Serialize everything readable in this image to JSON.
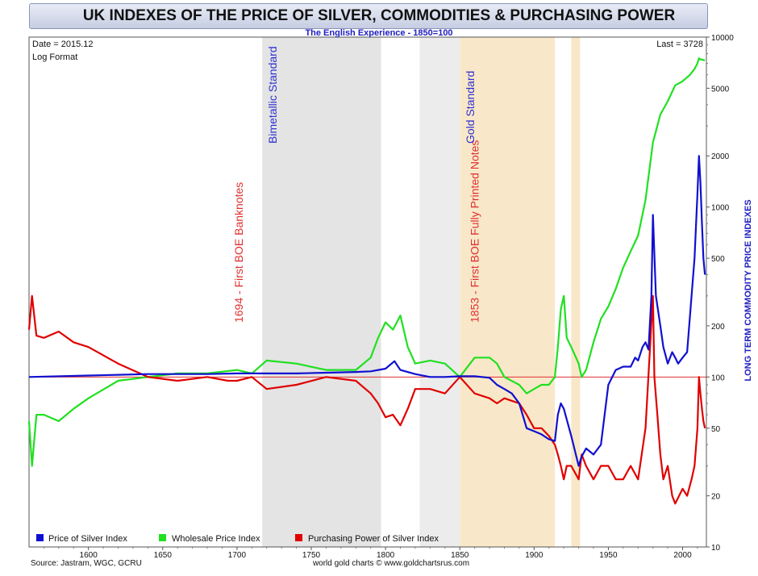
{
  "chart_data": {
    "type": "line",
    "title": "UK INDEXES OF THE PRICE OF SILVER, COMMODITIES & PURCHASING POWER",
    "subtitle": "The English Experience - 1850=100",
    "date_label": "Date = 2015.12",
    "format_label": "Log Format",
    "last_label": "Last = 3728",
    "ylabel": "LONG TERM COMMODITY PRICE INDEXES",
    "yscale": "log",
    "ylim": [
      10,
      10000
    ],
    "xlim": [
      1560,
      2016
    ],
    "x_ticks": [
      "1600",
      "1650",
      "1700",
      "1750",
      "1800",
      "1850",
      "1900",
      "1950",
      "2000"
    ],
    "y_ticks": [
      "10",
      "20",
      "50",
      "100",
      "200",
      "500",
      "1000",
      "2000",
      "5000",
      "10000"
    ],
    "reference_line": 100,
    "shaded_regions": [
      {
        "name": "Bimetallic Standard",
        "from": 1717,
        "to": 1797,
        "color": "#e4e4e4"
      },
      {
        "name": "light-gray",
        "from": 1823,
        "to": 1850,
        "color": "#ececec"
      },
      {
        "name": "Gold Standard",
        "from": 1850,
        "to": 1914,
        "color": "#f8e8c9"
      },
      {
        "name": "gold-return",
        "from": 1925,
        "to": 1931,
        "color": "#f8e8c9"
      }
    ],
    "annotations": [
      {
        "text": "1694 - First BOE Banknotes",
        "x": 1694,
        "color": "#e03030"
      },
      {
        "text": "Bimetallic Standard",
        "x": 1717,
        "color": "#3030d0"
      },
      {
        "text": "1853 - First BOE Fully Printed Notes",
        "x": 1853,
        "color": "#e03030"
      },
      {
        "text": "Gold Standard",
        "x": 1850,
        "color": "#3030d0"
      }
    ],
    "series": [
      {
        "name": "Price of Silver Index",
        "color": "#1010d0",
        "x": [
          1560,
          1600,
          1620,
          1640,
          1660,
          1680,
          1700,
          1720,
          1740,
          1760,
          1780,
          1790,
          1800,
          1806,
          1810,
          1820,
          1830,
          1840,
          1850,
          1860,
          1870,
          1875,
          1880,
          1885,
          1890,
          1895,
          1900,
          1905,
          1910,
          1914,
          1916,
          1918,
          1920,
          1925,
          1930,
          1932,
          1935,
          1940,
          1945,
          1950,
          1955,
          1960,
          1965,
          1968,
          1970,
          1973,
          1975,
          1977,
          1979,
          1980,
          1982,
          1985,
          1987,
          1990,
          1993,
          1995,
          1997,
          2000,
          2003,
          2006,
          2008,
          2010,
          2011,
          2012,
          2013,
          2014,
          2015
        ],
        "values": [
          100,
          102,
          103,
          104,
          104,
          104,
          105,
          105,
          105,
          106,
          107,
          108,
          112,
          124,
          110,
          104,
          100,
          100,
          101,
          101,
          99,
          90,
          85,
          80,
          70,
          50,
          48,
          46,
          43,
          42,
          60,
          70,
          65,
          45,
          30,
          34,
          38,
          35,
          40,
          90,
          110,
          115,
          115,
          130,
          125,
          150,
          160,
          145,
          300,
          900,
          300,
          200,
          150,
          120,
          140,
          130,
          120,
          130,
          140,
          300,
          500,
          1200,
          2000,
          1400,
          800,
          500,
          400
        ]
      },
      {
        "name": "Wholesale Price Index",
        "color": "#20e020",
        "x": [
          1560,
          1562,
          1565,
          1570,
          1580,
          1590,
          1600,
          1620,
          1640,
          1660,
          1680,
          1700,
          1710,
          1720,
          1740,
          1760,
          1780,
          1790,
          1795,
          1800,
          1805,
          1810,
          1815,
          1820,
          1830,
          1840,
          1850,
          1860,
          1870,
          1875,
          1880,
          1890,
          1895,
          1900,
          1905,
          1910,
          1914,
          1916,
          1918,
          1920,
          1922,
          1925,
          1930,
          1932,
          1935,
          1940,
          1945,
          1950,
          1955,
          1960,
          1965,
          1970,
          1975,
          1980,
          1985,
          1990,
          1995,
          2000,
          2005,
          2008,
          2010,
          2011,
          2012,
          2015
        ],
        "values": [
          55,
          30,
          60,
          60,
          55,
          65,
          75,
          95,
          100,
          105,
          105,
          110,
          105,
          125,
          120,
          110,
          110,
          130,
          170,
          210,
          190,
          230,
          150,
          120,
          125,
          120,
          100,
          130,
          130,
          120,
          100,
          90,
          80,
          85,
          90,
          90,
          100,
          150,
          250,
          300,
          170,
          150,
          120,
          100,
          110,
          160,
          220,
          260,
          330,
          440,
          550,
          680,
          1100,
          2400,
          3500,
          4200,
          5200,
          5500,
          6000,
          6500,
          7000,
          7500,
          7400,
          7300
        ]
      },
      {
        "name": "Purchasing Power of Silver Index",
        "color": "#e00000",
        "x": [
          1560,
          1562,
          1565,
          1570,
          1580,
          1590,
          1600,
          1620,
          1640,
          1660,
          1680,
          1694,
          1700,
          1710,
          1720,
          1740,
          1760,
          1780,
          1790,
          1795,
          1800,
          1805,
          1810,
          1815,
          1820,
          1830,
          1840,
          1850,
          1860,
          1870,
          1875,
          1880,
          1890,
          1895,
          1900,
          1905,
          1910,
          1914,
          1916,
          1918,
          1920,
          1922,
          1925,
          1930,
          1932,
          1935,
          1940,
          1945,
          1950,
          1955,
          1960,
          1965,
          1970,
          1975,
          1980,
          1981,
          1983,
          1985,
          1987,
          1990,
          1993,
          1995,
          2000,
          2003,
          2006,
          2008,
          2010,
          2011,
          2012,
          2013,
          2014,
          2015
        ],
        "values": [
          190,
          300,
          175,
          170,
          185,
          160,
          150,
          120,
          100,
          95,
          100,
          95,
          95,
          100,
          85,
          90,
          100,
          95,
          80,
          70,
          58,
          60,
          52,
          65,
          85,
          85,
          80,
          100,
          80,
          75,
          70,
          75,
          70,
          60,
          50,
          50,
          45,
          40,
          35,
          30,
          25,
          30,
          30,
          25,
          35,
          30,
          25,
          30,
          30,
          25,
          25,
          30,
          25,
          50,
          300,
          100,
          60,
          35,
          25,
          30,
          20,
          18,
          22,
          20,
          25,
          30,
          50,
          100,
          80,
          65,
          55,
          50
        ]
      }
    ]
  },
  "source": "Source: Jastram, WGC, GCRU",
  "credit": "world gold charts © www.goldchartsrus.com"
}
